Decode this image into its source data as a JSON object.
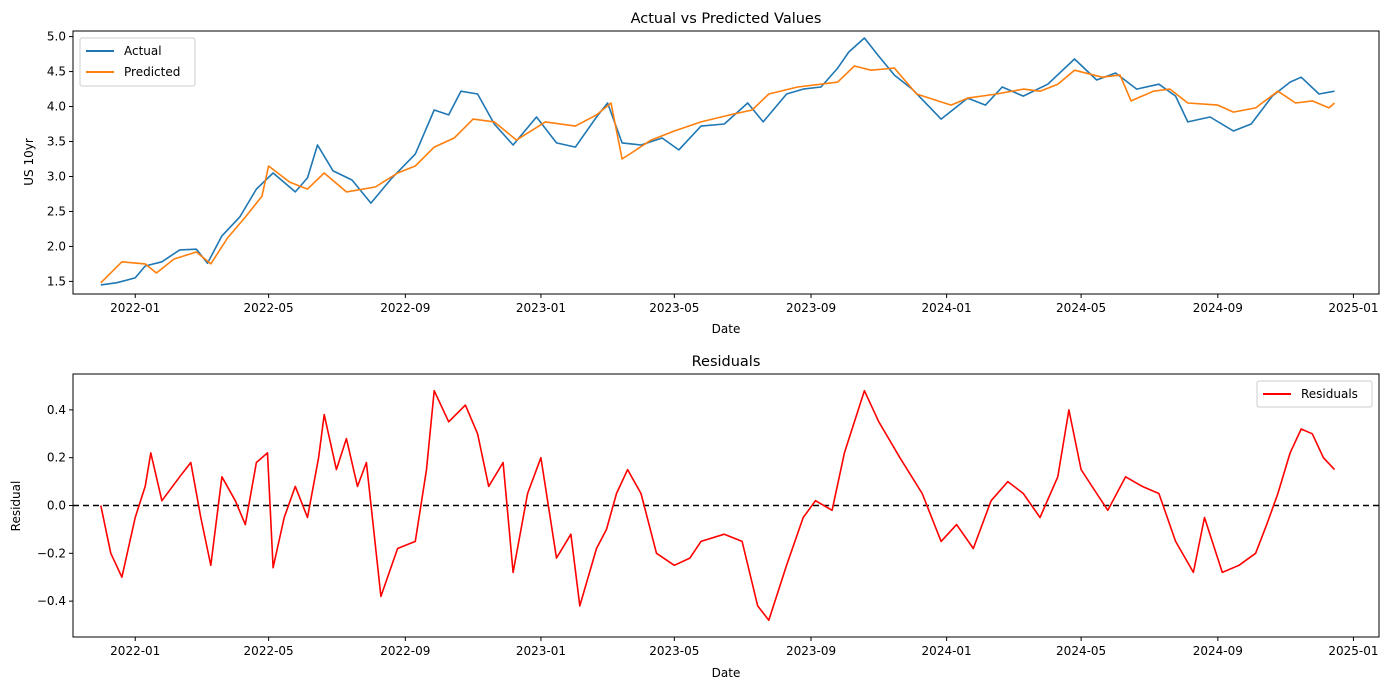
{
  "chart_data": [
    {
      "type": "line",
      "title": "Actual vs Predicted Values",
      "xlabel": "Date",
      "ylabel": "US 10yr",
      "xlim": [
        "2021-11-06",
        "2025-01-24"
      ],
      "ylim": [
        1.32,
        5.08
      ],
      "x_ticks": [
        "2022-01",
        "2022-05",
        "2022-09",
        "2023-01",
        "2023-05",
        "2023-09",
        "2024-01",
        "2024-05",
        "2024-09",
        "2025-01"
      ],
      "y_ticks": [
        "1.5",
        "2.0",
        "2.5",
        "3.0",
        "3.5",
        "4.0",
        "4.5",
        "5.0"
      ],
      "legend": "top-left",
      "grid": false,
      "series": [
        {
          "name": "Actual",
          "color": "#1f77b4",
          "points": [
            [
              "2021-12-01",
              1.45
            ],
            [
              "2021-12-15",
              1.48
            ],
            [
              "2022-01-01",
              1.55
            ],
            [
              "2022-01-10",
              1.72
            ],
            [
              "2022-01-25",
              1.78
            ],
            [
              "2022-02-10",
              1.95
            ],
            [
              "2022-02-25",
              1.96
            ],
            [
              "2022-03-07",
              1.76
            ],
            [
              "2022-03-20",
              2.15
            ],
            [
              "2022-04-05",
              2.42
            ],
            [
              "2022-04-20",
              2.82
            ],
            [
              "2022-05-05",
              3.05
            ],
            [
              "2022-05-25",
              2.78
            ],
            [
              "2022-06-05",
              2.98
            ],
            [
              "2022-06-14",
              3.45
            ],
            [
              "2022-06-28",
              3.08
            ],
            [
              "2022-07-15",
              2.95
            ],
            [
              "2022-08-01",
              2.62
            ],
            [
              "2022-08-20",
              2.98
            ],
            [
              "2022-09-10",
              3.32
            ],
            [
              "2022-09-27",
              3.95
            ],
            [
              "2022-10-10",
              3.88
            ],
            [
              "2022-10-21",
              4.22
            ],
            [
              "2022-11-05",
              4.18
            ],
            [
              "2022-11-20",
              3.75
            ],
            [
              "2022-12-07",
              3.45
            ],
            [
              "2022-12-28",
              3.85
            ],
            [
              "2023-01-15",
              3.48
            ],
            [
              "2023-02-01",
              3.42
            ],
            [
              "2023-02-20",
              3.85
            ],
            [
              "2023-03-02",
              4.05
            ],
            [
              "2023-03-15",
              3.48
            ],
            [
              "2023-04-01",
              3.45
            ],
            [
              "2023-04-20",
              3.55
            ],
            [
              "2023-05-05",
              3.38
            ],
            [
              "2023-05-25",
              3.72
            ],
            [
              "2023-06-15",
              3.75
            ],
            [
              "2023-07-06",
              4.05
            ],
            [
              "2023-07-20",
              3.78
            ],
            [
              "2023-08-10",
              4.18
            ],
            [
              "2023-08-25",
              4.25
            ],
            [
              "2023-09-10",
              4.28
            ],
            [
              "2023-09-25",
              4.55
            ],
            [
              "2023-10-05",
              4.78
            ],
            [
              "2023-10-19",
              4.98
            ],
            [
              "2023-11-01",
              4.72
            ],
            [
              "2023-11-15",
              4.45
            ],
            [
              "2023-12-01",
              4.25
            ],
            [
              "2023-12-27",
              3.82
            ],
            [
              "2024-01-20",
              4.12
            ],
            [
              "2024-02-05",
              4.02
            ],
            [
              "2024-02-20",
              4.28
            ],
            [
              "2024-03-10",
              4.15
            ],
            [
              "2024-04-01",
              4.32
            ],
            [
              "2024-04-25",
              4.68
            ],
            [
              "2024-05-15",
              4.38
            ],
            [
              "2024-06-01",
              4.48
            ],
            [
              "2024-06-20",
              4.25
            ],
            [
              "2024-07-10",
              4.32
            ],
            [
              "2024-07-25",
              4.15
            ],
            [
              "2024-08-05",
              3.78
            ],
            [
              "2024-08-25",
              3.85
            ],
            [
              "2024-09-15",
              3.65
            ],
            [
              "2024-10-01",
              3.75
            ],
            [
              "2024-10-20",
              4.15
            ],
            [
              "2024-11-05",
              4.35
            ],
            [
              "2024-11-15",
              4.42
            ],
            [
              "2024-12-01",
              4.18
            ],
            [
              "2024-12-15",
              4.22
            ]
          ]
        },
        {
          "name": "Predicted",
          "color": "#ff7f0e",
          "points": [
            [
              "2021-12-01",
              1.48
            ],
            [
              "2021-12-20",
              1.78
            ],
            [
              "2022-01-10",
              1.75
            ],
            [
              "2022-01-20",
              1.62
            ],
            [
              "2022-02-05",
              1.82
            ],
            [
              "2022-02-25",
              1.92
            ],
            [
              "2022-03-10",
              1.75
            ],
            [
              "2022-03-25",
              2.12
            ],
            [
              "2022-04-10",
              2.42
            ],
            [
              "2022-04-25",
              2.72
            ],
            [
              "2022-05-01",
              3.15
            ],
            [
              "2022-05-20",
              2.92
            ],
            [
              "2022-06-05",
              2.82
            ],
            [
              "2022-06-20",
              3.05
            ],
            [
              "2022-07-10",
              2.78
            ],
            [
              "2022-08-05",
              2.85
            ],
            [
              "2022-08-25",
              3.05
            ],
            [
              "2022-09-10",
              3.15
            ],
            [
              "2022-09-27",
              3.42
            ],
            [
              "2022-10-15",
              3.55
            ],
            [
              "2022-11-01",
              3.82
            ],
            [
              "2022-11-20",
              3.78
            ],
            [
              "2022-12-10",
              3.52
            ],
            [
              "2023-01-05",
              3.78
            ],
            [
              "2023-02-01",
              3.72
            ],
            [
              "2023-02-20",
              3.88
            ],
            [
              "2023-03-05",
              4.05
            ],
            [
              "2023-03-15",
              3.25
            ],
            [
              "2023-04-10",
              3.52
            ],
            [
              "2023-05-01",
              3.65
            ],
            [
              "2023-05-25",
              3.78
            ],
            [
              "2023-06-20",
              3.88
            ],
            [
              "2023-07-10",
              3.95
            ],
            [
              "2023-07-25",
              4.18
            ],
            [
              "2023-08-20",
              4.28
            ],
            [
              "2023-09-10",
              4.32
            ],
            [
              "2023-09-25",
              4.35
            ],
            [
              "2023-10-10",
              4.58
            ],
            [
              "2023-10-25",
              4.52
            ],
            [
              "2023-11-15",
              4.55
            ],
            [
              "2023-12-05",
              4.18
            ],
            [
              "2024-01-05",
              4.02
            ],
            [
              "2024-01-20",
              4.12
            ],
            [
              "2024-02-15",
              4.18
            ],
            [
              "2024-03-10",
              4.25
            ],
            [
              "2024-03-25",
              4.22
            ],
            [
              "2024-04-10",
              4.32
            ],
            [
              "2024-04-25",
              4.52
            ],
            [
              "2024-05-20",
              4.42
            ],
            [
              "2024-06-05",
              4.45
            ],
            [
              "2024-06-15",
              4.08
            ],
            [
              "2024-07-05",
              4.22
            ],
            [
              "2024-07-20",
              4.25
            ],
            [
              "2024-08-05",
              4.05
            ],
            [
              "2024-09-01",
              4.02
            ],
            [
              "2024-09-15",
              3.92
            ],
            [
              "2024-10-05",
              3.98
            ],
            [
              "2024-10-25",
              4.22
            ],
            [
              "2024-11-10",
              4.05
            ],
            [
              "2024-11-25",
              4.08
            ],
            [
              "2024-12-10",
              3.98
            ],
            [
              "2024-12-15",
              4.05
            ]
          ]
        }
      ]
    },
    {
      "type": "line",
      "title": "Residuals",
      "xlabel": "Date",
      "ylabel": "Residual",
      "xlim": [
        "2021-11-06",
        "2025-01-24"
      ],
      "ylim": [
        -0.55,
        0.55
      ],
      "x_ticks": [
        "2022-01",
        "2022-05",
        "2022-09",
        "2023-01",
        "2023-05",
        "2023-09",
        "2024-01",
        "2024-05",
        "2024-09",
        "2025-01"
      ],
      "y_ticks": [
        "−0.4",
        "−0.2",
        "0.0",
        "0.2",
        "0.4"
      ],
      "y_tick_values": [
        -0.4,
        -0.2,
        0.0,
        0.2,
        0.4
      ],
      "reference_line": 0.0,
      "legend": "top-right",
      "grid": false,
      "series": [
        {
          "name": "Residuals",
          "color": "#ff0000",
          "points": [
            [
              "2021-12-01",
              0.0
            ],
            [
              "2021-12-10",
              -0.2
            ],
            [
              "2021-12-20",
              -0.3
            ],
            [
              "2022-01-01",
              -0.05
            ],
            [
              "2022-01-10",
              0.08
            ],
            [
              "2022-01-15",
              0.22
            ],
            [
              "2022-01-25",
              0.02
            ],
            [
              "2022-02-10",
              0.12
            ],
            [
              "2022-02-20",
              0.18
            ],
            [
              "2022-03-01",
              -0.05
            ],
            [
              "2022-03-10",
              -0.25
            ],
            [
              "2022-03-20",
              0.12
            ],
            [
              "2022-04-01",
              0.02
            ],
            [
              "2022-04-10",
              -0.08
            ],
            [
              "2022-04-20",
              0.18
            ],
            [
              "2022-04-30",
              0.22
            ],
            [
              "2022-05-05",
              -0.26
            ],
            [
              "2022-05-15",
              -0.05
            ],
            [
              "2022-05-25",
              0.08
            ],
            [
              "2022-06-05",
              -0.05
            ],
            [
              "2022-06-15",
              0.2
            ],
            [
              "2022-06-20",
              0.38
            ],
            [
              "2022-07-01",
              0.15
            ],
            [
              "2022-07-10",
              0.28
            ],
            [
              "2022-07-20",
              0.08
            ],
            [
              "2022-07-28",
              0.18
            ],
            [
              "2022-08-10",
              -0.38
            ],
            [
              "2022-08-25",
              -0.18
            ],
            [
              "2022-09-10",
              -0.15
            ],
            [
              "2022-09-20",
              0.15
            ],
            [
              "2022-09-27",
              0.48
            ],
            [
              "2022-10-10",
              0.35
            ],
            [
              "2022-10-25",
              0.42
            ],
            [
              "2022-11-05",
              0.3
            ],
            [
              "2022-11-15",
              0.08
            ],
            [
              "2022-11-28",
              0.18
            ],
            [
              "2022-12-07",
              -0.28
            ],
            [
              "2022-12-20",
              0.05
            ],
            [
              "2023-01-01",
              0.2
            ],
            [
              "2023-01-15",
              -0.22
            ],
            [
              "2023-01-28",
              -0.12
            ],
            [
              "2023-02-05",
              -0.42
            ],
            [
              "2023-02-20",
              -0.18
            ],
            [
              "2023-03-01",
              -0.1
            ],
            [
              "2023-03-10",
              0.05
            ],
            [
              "2023-03-20",
              0.15
            ],
            [
              "2023-04-01",
              0.05
            ],
            [
              "2023-04-15",
              -0.2
            ],
            [
              "2023-05-01",
              -0.25
            ],
            [
              "2023-05-15",
              -0.22
            ],
            [
              "2023-05-25",
              -0.15
            ],
            [
              "2023-06-15",
              -0.12
            ],
            [
              "2023-07-01",
              -0.15
            ],
            [
              "2023-07-15",
              -0.42
            ],
            [
              "2023-07-25",
              -0.48
            ],
            [
              "2023-08-10",
              -0.25
            ],
            [
              "2023-08-25",
              -0.05
            ],
            [
              "2023-09-05",
              0.02
            ],
            [
              "2023-09-20",
              -0.02
            ],
            [
              "2023-10-01",
              0.22
            ],
            [
              "2023-10-19",
              0.48
            ],
            [
              "2023-11-01",
              0.35
            ],
            [
              "2023-11-20",
              0.2
            ],
            [
              "2023-12-10",
              0.05
            ],
            [
              "2023-12-27",
              -0.15
            ],
            [
              "2024-01-10",
              -0.08
            ],
            [
              "2024-01-25",
              -0.18
            ],
            [
              "2024-02-10",
              0.02
            ],
            [
              "2024-02-25",
              0.1
            ],
            [
              "2024-03-10",
              0.05
            ],
            [
              "2024-03-25",
              -0.05
            ],
            [
              "2024-04-10",
              0.12
            ],
            [
              "2024-04-20",
              0.4
            ],
            [
              "2024-05-01",
              0.15
            ],
            [
              "2024-05-15",
              0.05
            ],
            [
              "2024-05-25",
              -0.02
            ],
            [
              "2024-06-10",
              0.12
            ],
            [
              "2024-06-25",
              0.08
            ],
            [
              "2024-07-10",
              0.05
            ],
            [
              "2024-07-25",
              -0.15
            ],
            [
              "2024-08-10",
              -0.28
            ],
            [
              "2024-08-20",
              -0.05
            ],
            [
              "2024-09-05",
              -0.28
            ],
            [
              "2024-09-20",
              -0.25
            ],
            [
              "2024-10-05",
              -0.2
            ],
            [
              "2024-10-15",
              -0.08
            ],
            [
              "2024-10-25",
              0.05
            ],
            [
              "2024-11-05",
              0.22
            ],
            [
              "2024-11-15",
              0.32
            ],
            [
              "2024-11-25",
              0.3
            ],
            [
              "2024-12-05",
              0.2
            ],
            [
              "2024-12-15",
              0.15
            ]
          ]
        }
      ]
    }
  ]
}
